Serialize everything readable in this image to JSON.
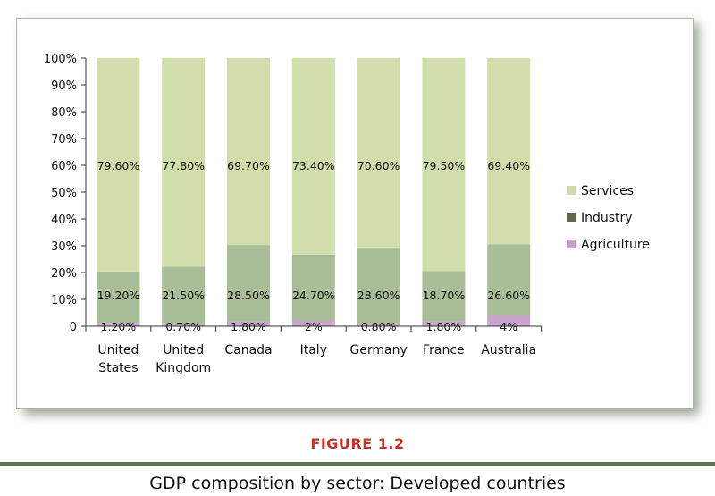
{
  "chart_data": {
    "type": "bar",
    "stacked": "percent",
    "categories": [
      "United States",
      "United Kingdom",
      "Canada",
      "Italy",
      "Germany",
      "France",
      "Australia"
    ],
    "category_lines": [
      [
        "United",
        "States"
      ],
      [
        "United",
        "Kingdom"
      ],
      [
        "Canada"
      ],
      [
        "Italy"
      ],
      [
        "Germany"
      ],
      [
        "France"
      ],
      [
        "Australia"
      ]
    ],
    "series": [
      {
        "name": "Agriculture",
        "values": [
          1.2,
          0.7,
          1.8,
          2,
          0.8,
          1.8,
          4
        ],
        "labels": [
          "1.20%",
          "0.70%",
          "1.80%",
          "2%",
          "0.80%",
          "1.80%",
          "4%"
        ],
        "color": "#c9a2cc"
      },
      {
        "name": "Industry",
        "values": [
          19.2,
          21.5,
          28.5,
          24.7,
          28.6,
          18.7,
          26.6
        ],
        "labels": [
          "19.20%",
          "21.50%",
          "28.50%",
          "24.70%",
          "28.60%",
          "18.70%",
          "26.60%"
        ],
        "color": "#a9bd98"
      },
      {
        "name": "Services",
        "values": [
          79.6,
          77.8,
          69.7,
          73.4,
          70.6,
          79.5,
          69.4
        ],
        "labels": [
          "79.60%",
          "77.80%",
          "69.70%",
          "73.40%",
          "70.60%",
          "79.50%",
          "69.40%"
        ],
        "color": "#d1deac"
      }
    ],
    "legend": {
      "position": "right",
      "items": [
        {
          "name": "Services",
          "color": "#cbdcae"
        },
        {
          "name": "Industry",
          "color": "#6a6252"
        },
        {
          "name": "Agriculture",
          "color": "#c9a2cc"
        }
      ]
    },
    "yticks": [
      "0",
      "10%",
      "20%",
      "30%",
      "40%",
      "50%",
      "60%",
      "70%",
      "80%",
      "90%",
      "100%"
    ],
    "ylim": [
      0,
      100
    ],
    "grid": false
  },
  "figure_label": "FIGURE 1.2",
  "caption": "GDP composition by sector: Developed countries"
}
